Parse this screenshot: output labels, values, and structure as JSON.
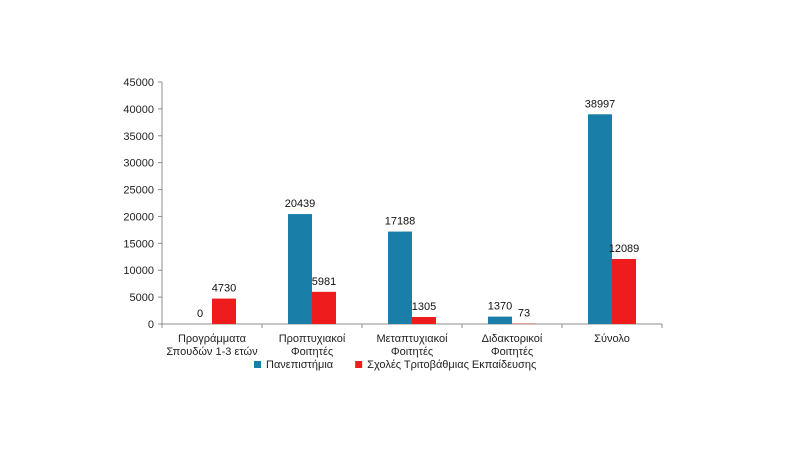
{
  "chart_data": {
    "type": "bar",
    "categories": [
      [
        "Προγράμματα",
        "Σπουδών 1-3 ετών"
      ],
      [
        "Προπτυχιακοί",
        "Φοιτητές"
      ],
      [
        "Μεταπτυχιακοί",
        "Φοιτητές"
      ],
      [
        "Διδακτορικοί",
        "Φοιτητές"
      ],
      [
        "Σύνολο"
      ]
    ],
    "series": [
      {
        "name": "Πανεπιστήμια",
        "color": "#1a7fa8",
        "values": [
          0,
          20439,
          17188,
          1370,
          38997
        ]
      },
      {
        "name": "Σχολές Τριτοβάθμιας Εκπαίδευσης",
        "color": "#ee1c1c",
        "values": [
          4730,
          5981,
          1305,
          73,
          12089
        ]
      }
    ],
    "ylim": [
      0,
      45000
    ],
    "yticks": [
      "0",
      "5000",
      "10000",
      "15000",
      "20000",
      "25000",
      "30000",
      "35000",
      "40000",
      "45000"
    ],
    "legend": "bottom",
    "grid": false
  }
}
